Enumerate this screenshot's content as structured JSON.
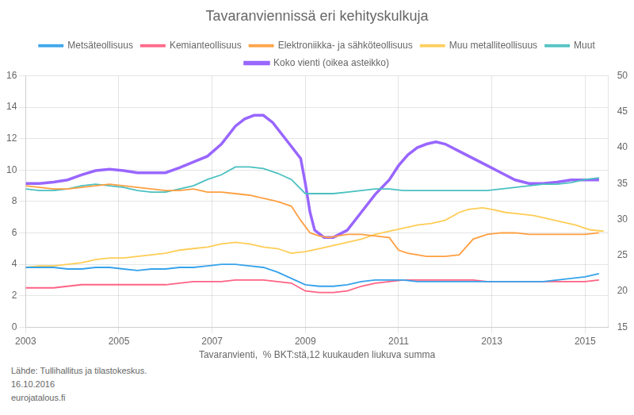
{
  "chart_data": {
    "type": "line",
    "title": "Tavaranviennissä eri kehityskulkuja",
    "subtitle": "Tavaranvienti,  % BKT:stä,12 kuukauden liukuva summa",
    "annotations": [
      "Lähde: Tullihallitus ja tilastokeskus.",
      "16.10.2016",
      "eurojatalous.fi"
    ],
    "xlim": [
      2003,
      2015.5
    ],
    "xticks": [
      2003,
      2005,
      2007,
      2009,
      2011,
      2013,
      2015
    ],
    "ylim": [
      0,
      16
    ],
    "yticks": [
      0,
      2,
      4,
      6,
      8,
      10,
      12,
      14,
      16
    ],
    "y2lim": [
      15,
      50
    ],
    "y2ticks": [
      15,
      20,
      25,
      30,
      35,
      40,
      45,
      50
    ],
    "grid": true,
    "legend": "top",
    "marker": "none",
    "series": [
      {
        "name": "Metsäteollisuus",
        "x": [
          2003.0,
          2003.3,
          2003.6,
          2003.9,
          2004.2,
          2004.5,
          2004.8,
          2005.1,
          2005.4,
          2005.7,
          2006.0,
          2006.3,
          2006.6,
          2006.9,
          2007.2,
          2007.5,
          2007.8,
          2008.1,
          2008.4,
          2008.7,
          2009.0,
          2009.3,
          2009.6,
          2009.9,
          2010.2,
          2010.5,
          2010.8,
          2011.1,
          2011.4,
          2011.7,
          2012.0,
          2012.3,
          2012.6,
          2012.9,
          2013.2,
          2013.5,
          2013.8,
          2014.1,
          2014.4,
          2014.7,
          2015.0,
          2015.3
        ],
        "values": [
          3.8,
          3.8,
          3.8,
          3.7,
          3.7,
          3.8,
          3.8,
          3.7,
          3.6,
          3.7,
          3.7,
          3.8,
          3.8,
          3.9,
          4.0,
          4.0,
          3.9,
          3.8,
          3.5,
          3.1,
          2.7,
          2.6,
          2.6,
          2.7,
          2.9,
          3.0,
          3.0,
          3.0,
          2.9,
          2.9,
          2.9,
          2.9,
          2.9,
          2.9,
          2.9,
          2.9,
          2.9,
          2.9,
          3.0,
          3.1,
          3.2,
          3.4
        ]
      },
      {
        "name": "Kemianteollisuus",
        "x": [
          2003.0,
          2003.3,
          2003.6,
          2003.9,
          2004.2,
          2004.5,
          2004.8,
          2005.1,
          2005.4,
          2005.7,
          2006.0,
          2006.3,
          2006.6,
          2006.9,
          2007.2,
          2007.5,
          2007.8,
          2008.1,
          2008.4,
          2008.7,
          2009.0,
          2009.3,
          2009.6,
          2009.9,
          2010.2,
          2010.5,
          2010.8,
          2011.1,
          2011.4,
          2011.7,
          2012.0,
          2012.3,
          2012.6,
          2012.9,
          2013.2,
          2013.5,
          2013.8,
          2014.1,
          2014.4,
          2014.7,
          2015.0,
          2015.3
        ],
        "values": [
          2.5,
          2.5,
          2.5,
          2.6,
          2.7,
          2.7,
          2.7,
          2.7,
          2.7,
          2.7,
          2.7,
          2.8,
          2.9,
          2.9,
          2.9,
          3.0,
          3.0,
          3.0,
          2.9,
          2.8,
          2.3,
          2.2,
          2.2,
          2.3,
          2.6,
          2.8,
          2.9,
          3.0,
          3.0,
          3.0,
          3.0,
          3.0,
          3.0,
          2.9,
          2.9,
          2.9,
          2.9,
          2.9,
          2.9,
          2.9,
          2.9,
          3.0
        ]
      },
      {
        "name": "Elektroniikka- ja sähköteollisuus",
        "x": [
          2003.0,
          2003.3,
          2003.6,
          2003.9,
          2004.2,
          2004.5,
          2004.8,
          2005.1,
          2005.4,
          2005.7,
          2006.0,
          2006.3,
          2006.6,
          2006.9,
          2007.2,
          2007.5,
          2007.8,
          2008.1,
          2008.4,
          2008.7,
          2008.9,
          2009.1,
          2009.3,
          2009.5,
          2009.7,
          2009.9,
          2010.2,
          2010.5,
          2010.8,
          2011.0,
          2011.2,
          2011.4,
          2011.6,
          2011.8,
          2012.0,
          2012.3,
          2012.6,
          2012.9,
          2013.2,
          2013.5,
          2013.8,
          2014.1,
          2014.4,
          2014.7,
          2015.0,
          2015.3
        ],
        "values": [
          9.0,
          8.9,
          8.8,
          8.8,
          8.9,
          9.0,
          9.1,
          9.0,
          8.9,
          8.8,
          8.7,
          8.7,
          8.8,
          8.6,
          8.6,
          8.5,
          8.4,
          8.2,
          8.0,
          7.7,
          6.8,
          6.0,
          5.8,
          5.7,
          5.8,
          5.9,
          5.9,
          5.8,
          5.7,
          4.9,
          4.7,
          4.6,
          4.5,
          4.5,
          4.5,
          4.6,
          5.6,
          5.9,
          6.0,
          6.0,
          5.9,
          5.9,
          5.9,
          5.9,
          5.9,
          6.0
        ]
      },
      {
        "name": "Muu metalliteollisuus",
        "x": [
          2003.0,
          2003.3,
          2003.6,
          2003.9,
          2004.2,
          2004.5,
          2004.8,
          2005.1,
          2005.4,
          2005.7,
          2006.0,
          2006.3,
          2006.6,
          2006.9,
          2007.2,
          2007.5,
          2007.8,
          2008.1,
          2008.4,
          2008.7,
          2009.0,
          2009.3,
          2009.6,
          2009.9,
          2010.2,
          2010.5,
          2010.8,
          2011.1,
          2011.4,
          2011.7,
          2012.0,
          2012.3,
          2012.5,
          2012.8,
          2013.0,
          2013.3,
          2013.6,
          2013.9,
          2014.2,
          2014.5,
          2014.8,
          2015.1,
          2015.4
        ],
        "values": [
          3.8,
          3.9,
          3.9,
          4.0,
          4.1,
          4.3,
          4.4,
          4.4,
          4.5,
          4.6,
          4.7,
          4.9,
          5.0,
          5.1,
          5.3,
          5.4,
          5.3,
          5.1,
          5.0,
          4.7,
          4.8,
          5.0,
          5.2,
          5.4,
          5.6,
          5.9,
          6.1,
          6.3,
          6.5,
          6.6,
          6.8,
          7.3,
          7.5,
          7.6,
          7.5,
          7.3,
          7.2,
          7.1,
          6.9,
          6.7,
          6.5,
          6.2,
          6.1
        ]
      },
      {
        "name": "Muut",
        "x": [
          2003.0,
          2003.3,
          2003.6,
          2003.9,
          2004.2,
          2004.5,
          2004.8,
          2005.1,
          2005.4,
          2005.7,
          2006.0,
          2006.3,
          2006.6,
          2006.9,
          2007.2,
          2007.5,
          2007.8,
          2008.1,
          2008.4,
          2008.7,
          2009.0,
          2009.3,
          2009.6,
          2009.9,
          2010.2,
          2010.5,
          2010.8,
          2011.1,
          2011.4,
          2011.7,
          2012.0,
          2012.3,
          2012.6,
          2012.9,
          2013.2,
          2013.5,
          2013.8,
          2014.1,
          2014.4,
          2014.7,
          2015.0,
          2015.3
        ],
        "values": [
          8.8,
          8.7,
          8.7,
          8.8,
          9.0,
          9.1,
          9.0,
          8.9,
          8.7,
          8.6,
          8.6,
          8.8,
          9.0,
          9.4,
          9.7,
          10.2,
          10.2,
          10.1,
          9.8,
          9.4,
          8.5,
          8.5,
          8.5,
          8.6,
          8.7,
          8.8,
          8.8,
          8.7,
          8.7,
          8.7,
          8.7,
          8.7,
          8.7,
          8.7,
          8.8,
          8.9,
          9.0,
          9.1,
          9.1,
          9.2,
          9.4,
          9.5
        ]
      },
      {
        "name": "Koko vienti (oikea asteikko)",
        "axis": "y2",
        "x": [
          2003.0,
          2003.3,
          2003.6,
          2003.9,
          2004.2,
          2004.5,
          2004.8,
          2005.1,
          2005.4,
          2005.7,
          2006.0,
          2006.3,
          2006.6,
          2006.9,
          2007.2,
          2007.5,
          2007.7,
          2007.9,
          2008.1,
          2008.3,
          2008.6,
          2008.9,
          2009.0,
          2009.1,
          2009.2,
          2009.4,
          2009.6,
          2009.9,
          2010.2,
          2010.5,
          2010.8,
          2011.0,
          2011.2,
          2011.4,
          2011.6,
          2011.8,
          2012.0,
          2012.3,
          2012.6,
          2012.9,
          2013.2,
          2013.5,
          2013.8,
          2014.1,
          2014.4,
          2014.7,
          2015.0,
          2015.3
        ],
        "values": [
          35.0,
          35.0,
          35.2,
          35.5,
          36.2,
          36.8,
          37.0,
          36.8,
          36.5,
          36.5,
          36.5,
          37.2,
          38.0,
          38.8,
          40.5,
          43.0,
          44.0,
          44.5,
          44.5,
          43.5,
          41.0,
          38.5,
          35.0,
          31.0,
          28.5,
          27.5,
          27.5,
          28.5,
          31.0,
          33.5,
          35.5,
          37.5,
          39.0,
          40.0,
          40.5,
          40.8,
          40.5,
          39.5,
          38.5,
          37.5,
          36.5,
          35.5,
          35.0,
          35.0,
          35.2,
          35.5,
          35.5,
          35.5
        ]
      }
    ]
  }
}
